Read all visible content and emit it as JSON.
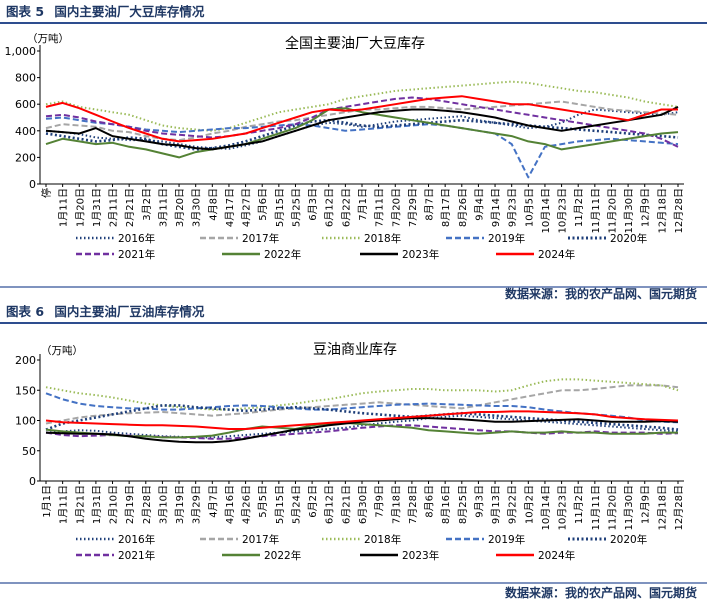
{
  "figures": [
    {
      "label": "图表 5",
      "title": "国内主要油厂大豆库存情况",
      "source": "数据来源：我的农产品网、国元期货"
    },
    {
      "label": "图表 6",
      "title": "国内主要油厂豆油库存情况",
      "source": "数据来源：我的农产品网、国元期货"
    }
  ],
  "chart_data": [
    {
      "type": "line",
      "title": "全国主要油厂大豆库存",
      "unit": "（万吨）",
      "ylim": [
        0,
        1000
      ],
      "yticks": [
        "0",
        "200",
        "400",
        "600",
        "800",
        "1,000"
      ],
      "categories": [
        "停",
        "1月11日",
        "1月20日",
        "1月31日",
        "2月11日",
        "2月21日",
        "3月2日",
        "3月11日",
        "3月20日",
        "3月30日",
        "4月8日",
        "4月17日",
        "4月27日",
        "5月6日",
        "5月15日",
        "5月25日",
        "6月3日",
        "6月12日",
        "6月22日",
        "7月1日",
        "7月11日",
        "7月20日",
        "7月29日",
        "8月7日",
        "8月17日",
        "8月26日",
        "9月4日",
        "9月14日",
        "9月23日",
        "10月5日",
        "10月14日",
        "10月23日",
        "11月2日",
        "11月11日",
        "11月20日",
        "11月30日",
        "12月9日",
        "12月18日",
        "12月28日"
      ],
      "series": [
        {
          "name": "2016年",
          "color": "#1f3f7a",
          "dash": "dot",
          "values": [
            400,
            390,
            375,
            350,
            340,
            330,
            330,
            320,
            300,
            280,
            270,
            265,
            290,
            320,
            360,
            400,
            440,
            460,
            450,
            430,
            450,
            470,
            480,
            490,
            500,
            510,
            480,
            460,
            440,
            420,
            430,
            460,
            520,
            560,
            550,
            540,
            530,
            520,
            540
          ]
        },
        {
          "name": "2017年",
          "color": "#a6a6a6",
          "dash": "dash",
          "values": [
            420,
            450,
            440,
            430,
            400,
            390,
            360,
            340,
            330,
            350,
            380,
            400,
            430,
            450,
            470,
            480,
            500,
            520,
            540,
            560,
            560,
            570,
            580,
            580,
            570,
            560,
            570,
            580,
            590,
            600,
            610,
            620,
            600,
            580,
            560,
            550,
            540,
            530,
            520
          ]
        },
        {
          "name": "2018年",
          "color": "#9bbb59",
          "dash": "dot",
          "values": [
            600,
            620,
            580,
            560,
            540,
            520,
            480,
            440,
            420,
            410,
            400,
            420,
            460,
            500,
            540,
            560,
            580,
            600,
            640,
            660,
            680,
            700,
            710,
            720,
            730,
            740,
            750,
            760,
            770,
            760,
            740,
            720,
            700,
            690,
            670,
            650,
            620,
            600,
            580
          ]
        },
        {
          "name": "2019年",
          "color": "#4472c4",
          "dash": "dash",
          "values": [
            490,
            500,
            480,
            460,
            450,
            430,
            410,
            400,
            390,
            400,
            410,
            420,
            420,
            430,
            440,
            450,
            440,
            420,
            400,
            410,
            420,
            430,
            440,
            450,
            440,
            420,
            400,
            380,
            300,
            50,
            280,
            300,
            320,
            330,
            340,
            330,
            320,
            310,
            300
          ]
        },
        {
          "name": "2020年",
          "color": "#1f3f7a",
          "dash": "dotthick",
          "values": [
            380,
            360,
            340,
            320,
            330,
            350,
            340,
            300,
            280,
            260,
            270,
            290,
            320,
            360,
            400,
            440,
            470,
            480,
            460,
            440,
            430,
            440,
            450,
            460,
            470,
            480,
            470,
            460,
            450,
            440,
            430,
            420,
            410,
            400,
            390,
            380,
            370,
            360,
            350
          ]
        },
        {
          "name": "2021年",
          "color": "#7030a0",
          "dash": "dash",
          "values": [
            510,
            520,
            500,
            470,
            450,
            430,
            400,
            380,
            370,
            360,
            350,
            360,
            380,
            400,
            420,
            450,
            500,
            560,
            580,
            600,
            620,
            640,
            650,
            640,
            620,
            600,
            580,
            560,
            540,
            520,
            500,
            480,
            460,
            440,
            420,
            400,
            380,
            340,
            280
          ]
        },
        {
          "name": "2022年",
          "color": "#548235",
          "dash": "solid",
          "values": [
            300,
            340,
            320,
            300,
            310,
            280,
            260,
            230,
            200,
            240,
            260,
            280,
            300,
            340,
            380,
            420,
            480,
            560,
            570,
            540,
            520,
            500,
            480,
            460,
            440,
            420,
            400,
            380,
            360,
            320,
            300,
            260,
            280,
            300,
            320,
            340,
            360,
            380,
            390
          ]
        },
        {
          "name": "2023年",
          "color": "#000000",
          "dash": "solid",
          "values": [
            400,
            390,
            380,
            420,
            360,
            340,
            320,
            300,
            290,
            270,
            260,
            280,
            300,
            320,
            360,
            400,
            440,
            480,
            500,
            520,
            540,
            550,
            560,
            560,
            550,
            540,
            520,
            500,
            470,
            440,
            420,
            400,
            420,
            440,
            460,
            480,
            500,
            520,
            580
          ]
        },
        {
          "name": "2024年",
          "color": "#ff0000",
          "dash": "solid",
          "values": [
            580,
            610,
            570,
            520,
            470,
            420,
            380,
            340,
            320,
            330,
            340,
            360,
            380,
            420,
            460,
            500,
            540,
            560,
            550,
            560,
            580,
            600,
            620,
            640,
            650,
            660,
            640,
            620,
            600,
            600,
            580,
            560,
            540,
            520,
            500,
            480,
            520,
            560,
            560
          ]
        }
      ]
    },
    {
      "type": "line",
      "title": "豆油商业库存",
      "unit": "（万吨）",
      "ylim": [
        0,
        200
      ],
      "yticks": [
        "0",
        "50",
        "100",
        "150",
        "200"
      ],
      "categories": [
        "1月1日",
        "1月11日",
        "1月21日",
        "1月31日",
        "2月10日",
        "2月19日",
        "2月28日",
        "3月10日",
        "3月19日",
        "3月29日",
        "4月7日",
        "4月16日",
        "4月26日",
        "5月5日",
        "5月15日",
        "5月24日",
        "6月2日",
        "6月12日",
        "6月21日",
        "6月30日",
        "7月9日",
        "7月18日",
        "7月28日",
        "8月6日",
        "8月16日",
        "8月25日",
        "9月3日",
        "9月13日",
        "9月22日",
        "10月2日",
        "10月14日",
        "10月23日",
        "11月2日",
        "11月11日",
        "11月20日",
        "11月30日",
        "12月9日",
        "12月18日",
        "12月28日"
      ],
      "series": [
        {
          "name": "2016年",
          "color": "#1f3f7a",
          "dash": "dot",
          "values": [
            80,
            82,
            84,
            83,
            80,
            78,
            76,
            74,
            73,
            72,
            72,
            74,
            76,
            78,
            80,
            82,
            84,
            86,
            88,
            92,
            95,
            98,
            100,
            104,
            106,
            108,
            106,
            104,
            102,
            100,
            98,
            96,
            94,
            92,
            90,
            88,
            86,
            84,
            82
          ]
        },
        {
          "name": "2017年",
          "color": "#a6a6a6",
          "dash": "dash",
          "values": [
            95,
            100,
            105,
            108,
            110,
            112,
            113,
            114,
            112,
            110,
            108,
            110,
            112,
            115,
            118,
            120,
            122,
            124,
            126,
            128,
            130,
            128,
            126,
            124,
            122,
            120,
            125,
            130,
            135,
            140,
            145,
            150,
            150,
            152,
            155,
            158,
            158,
            158,
            155
          ]
        },
        {
          "name": "2018年",
          "color": "#9bbb59",
          "dash": "dot",
          "values": [
            155,
            150,
            145,
            142,
            138,
            133,
            128,
            125,
            122,
            120,
            118,
            118,
            120,
            122,
            125,
            128,
            132,
            135,
            140,
            145,
            148,
            150,
            152,
            152,
            150,
            150,
            150,
            148,
            150,
            158,
            165,
            168,
            168,
            166,
            164,
            162,
            160,
            158,
            150
          ]
        },
        {
          "name": "2019年",
          "color": "#4472c4",
          "dash": "dash",
          "values": [
            145,
            135,
            128,
            124,
            122,
            120,
            120,
            118,
            118,
            120,
            122,
            124,
            125,
            124,
            122,
            120,
            118,
            118,
            120,
            122,
            124,
            126,
            127,
            128,
            127,
            126,
            125,
            124,
            124,
            122,
            118,
            115,
            112,
            110,
            108,
            105,
            100,
            98,
            97
          ]
        },
        {
          "name": "2020年",
          "color": "#1f3f7a",
          "dash": "dotthick",
          "values": [
            85,
            95,
            100,
            105,
            110,
            115,
            120,
            125,
            125,
            122,
            120,
            118,
            116,
            118,
            120,
            122,
            120,
            118,
            115,
            112,
            110,
            108,
            106,
            108,
            110,
            112,
            110,
            108,
            106,
            104,
            102,
            100,
            98,
            96,
            94,
            92,
            90,
            88,
            85
          ]
        },
        {
          "name": "2021年",
          "color": "#7030a0",
          "dash": "dash",
          "values": [
            80,
            76,
            74,
            75,
            76,
            75,
            74,
            73,
            72,
            71,
            70,
            70,
            72,
            74,
            76,
            78,
            80,
            82,
            85,
            88,
            90,
            92,
            92,
            90,
            88,
            86,
            84,
            82,
            82,
            80,
            78,
            80,
            80,
            82,
            80,
            80,
            80,
            78,
            79
          ]
        },
        {
          "name": "2022年",
          "color": "#548235",
          "dash": "solid",
          "values": [
            85,
            82,
            80,
            78,
            76,
            74,
            74,
            72,
            72,
            73,
            75,
            80,
            86,
            90,
            88,
            86,
            92,
            95,
            96,
            94,
            92,
            90,
            88,
            84,
            82,
            80,
            78,
            80,
            82,
            80,
            80,
            82,
            80,
            80,
            78,
            78,
            78,
            80,
            80
          ]
        },
        {
          "name": "2023年",
          "color": "#000000",
          "dash": "solid",
          "values": [
            80,
            79,
            78,
            78,
            77,
            74,
            70,
            67,
            65,
            64,
            64,
            66,
            70,
            75,
            80,
            85,
            88,
            92,
            95,
            98,
            100,
            102,
            104,
            104,
            103,
            102,
            100,
            98,
            98,
            99,
            100,
            101,
            102,
            100,
            98,
            98,
            98,
            99,
            98
          ]
        },
        {
          "name": "2024年",
          "color": "#ff0000",
          "dash": "solid",
          "values": [
            100,
            97,
            96,
            95,
            94,
            93,
            92,
            92,
            91,
            90,
            88,
            86,
            86,
            88,
            90,
            92,
            94,
            96,
            98,
            100,
            102,
            104,
            106,
            108,
            110,
            112,
            114,
            114,
            115,
            115,
            114,
            113,
            112,
            110,
            106,
            104,
            102,
            101,
            100
          ]
        }
      ]
    }
  ]
}
